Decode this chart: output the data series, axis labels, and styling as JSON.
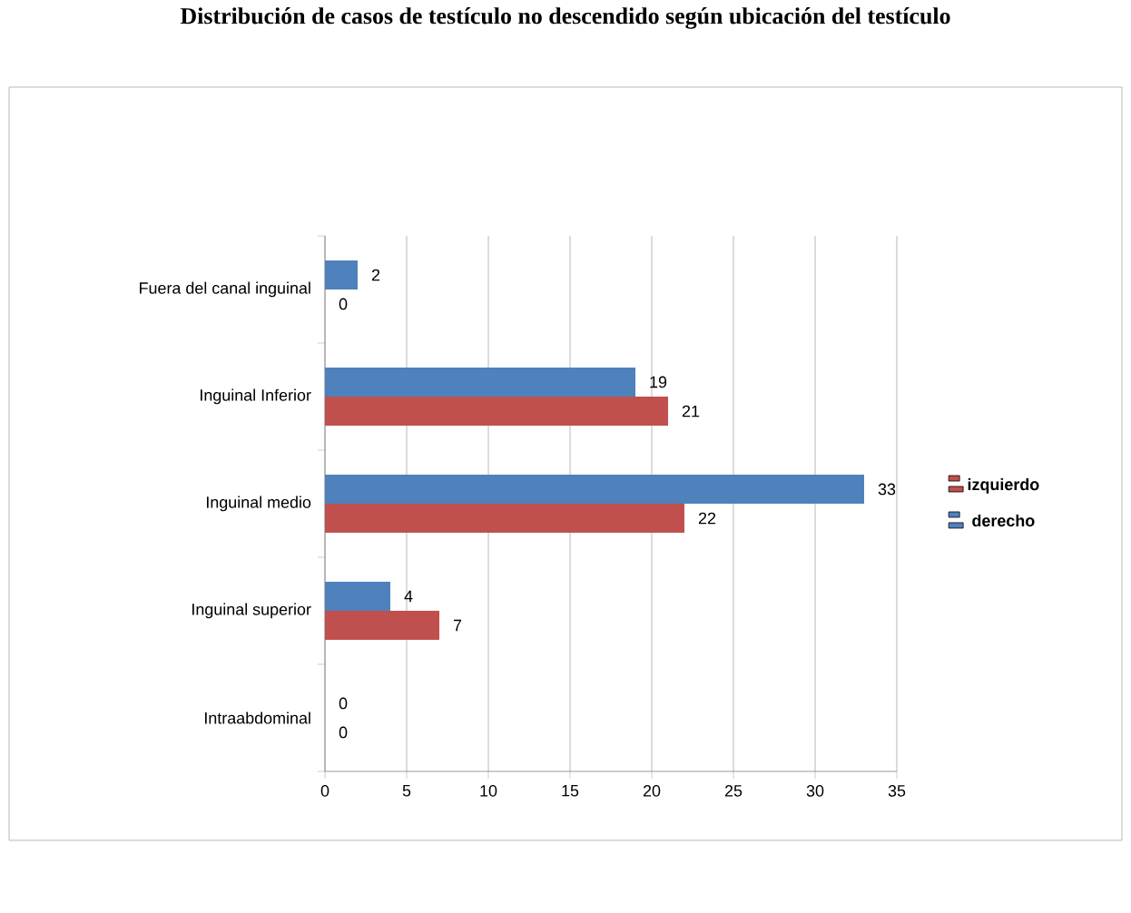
{
  "chart_data": {
    "type": "bar",
    "orientation": "horizontal",
    "title": "Distribución de casos de testículo no descendido según ubicación del testículo",
    "categories": [
      "Fuera del canal inguinal",
      "Inguinal Inferior",
      "Inguinal medio",
      "Inguinal superior",
      "Intraabdominal"
    ],
    "series": [
      {
        "name": "izquierdo",
        "color": "#c0504d",
        "values": [
          0,
          21,
          22,
          7,
          0
        ]
      },
      {
        "name": "derecho",
        "color": "#4f81bd",
        "values": [
          2,
          19,
          33,
          4,
          0
        ]
      }
    ],
    "xlim": [
      0,
      35
    ],
    "xticks": [
      0,
      5,
      10,
      15,
      20,
      25,
      30,
      35
    ],
    "grid": "x",
    "legend": "right",
    "data_labels": true
  }
}
